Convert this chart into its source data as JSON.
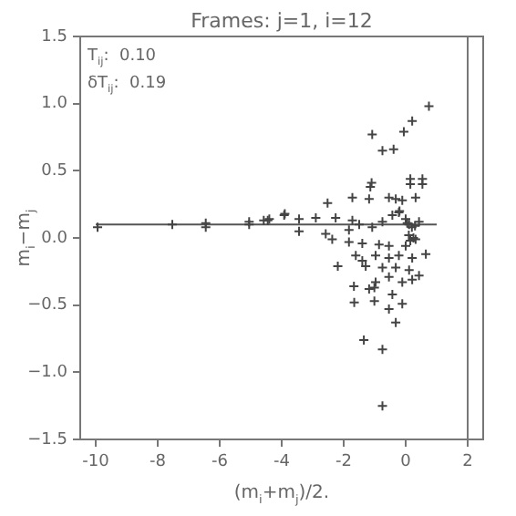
{
  "chart_data": {
    "type": "scatter",
    "title": "Frames: j=1, i=12",
    "xlabel": "(m$_{i}$+m$_{j}$)/2.",
    "ylabel": "m$_{i}$−m$_{j}$",
    "annotations": [
      "T$_{ij}$:  0.10",
      "δT$_{ij}$:  0.19"
    ],
    "xlim": [
      -10.5,
      2.5
    ],
    "xticks": [
      -10,
      -8,
      -6,
      -4,
      -2,
      0,
      2
    ],
    "ylim": [
      -1.5,
      1.5
    ],
    "yticks": [
      {
        "value": -1.5,
        "label": "−1.5"
      },
      {
        "value": -1.0,
        "label": "−1.0"
      },
      {
        "value": -0.5,
        "label": "−0.5"
      },
      {
        "value": 0,
        "label": "0.0"
      },
      {
        "value": 0.5,
        "label": "0.5"
      },
      {
        "value": 1.0,
        "label": "1.0"
      },
      {
        "value": 1.5,
        "label": "1.5"
      }
    ],
    "legend": false,
    "ref_lines": [
      {
        "axis": "x",
        "value": 2,
        "color": "#777777"
      }
    ],
    "series": [
      {
        "color": "#444444",
        "marker": "cross",
        "x": [
          0.75,
          0.21,
          -1.08,
          -0.06,
          -0.75,
          -0.39,
          -1.14,
          -1.1,
          0.15,
          0.54,
          0.15,
          0.54,
          -1.72,
          -2.52,
          -1.18,
          -0.54,
          -0.32,
          -0.11,
          0.32,
          -3.92,
          -4.58,
          -4.4,
          -3.44,
          -2.9,
          -2.26,
          -1.72,
          -3.44,
          -2.58,
          -1.83,
          -1.5,
          -1.08,
          -0.75,
          -0.43,
          -0.22,
          0.11,
          0.43,
          -2.37,
          -1.83,
          -1.4,
          -0.86,
          -0.54,
          0,
          0.32,
          0.65,
          -1.61,
          -1.4,
          -0.97,
          -0.54,
          -0.22,
          0.21,
          -2.19,
          -1.29,
          -0.75,
          -0.32,
          -0.54,
          0.11,
          0.43,
          -0.11,
          0.21,
          -1.67,
          -0.97,
          -1.18,
          -1.01,
          -1.66,
          -1.01,
          -0.43,
          -0.11,
          -0.54,
          -0.32,
          -1.35,
          -0.75,
          -0.75,
          -7.53,
          -6.45,
          -6.45,
          -5.05,
          -5.05,
          -4.45,
          -9.94,
          -3.9,
          0.05,
          0.2,
          0.25,
          0.1,
          -0.2,
          0.3,
          0.0,
          0.15
        ],
        "values": [
          0.98,
          0.87,
          0.77,
          0.79,
          0.65,
          0.66,
          0.38,
          0.41,
          0.44,
          0.44,
          0.4,
          0.4,
          0.3,
          0.26,
          0.29,
          0.3,
          0.29,
          0.28,
          0.3,
          0.17,
          0.13,
          0.14,
          0.14,
          0.15,
          0.15,
          0.13,
          0.05,
          0.03,
          0.06,
          0.1,
          0.08,
          0.12,
          0.17,
          0.19,
          0.1,
          0.12,
          -0.01,
          -0.03,
          -0.04,
          -0.05,
          -0.06,
          -0.06,
          -0.01,
          -0.12,
          -0.13,
          -0.17,
          -0.13,
          -0.15,
          -0.13,
          -0.15,
          -0.21,
          -0.21,
          -0.22,
          -0.22,
          -0.29,
          -0.24,
          -0.28,
          -0.33,
          -0.31,
          -0.36,
          -0.33,
          -0.38,
          -0.37,
          -0.48,
          -0.47,
          -0.42,
          -0.49,
          -0.53,
          -0.63,
          -0.76,
          -0.83,
          -1.25,
          0.1,
          0.08,
          0.11,
          0.12,
          0.1,
          0.13,
          0.08,
          0.18,
          0.11,
          0.08,
          0.0,
          0.02,
          0.2,
          0.09,
          0.14,
          -0.02
        ]
      },
      {
        "type": "line",
        "color": "#555555",
        "marker": "none",
        "x": [
          -10,
          1
        ],
        "values": [
          0.1,
          0.1
        ]
      }
    ]
  }
}
